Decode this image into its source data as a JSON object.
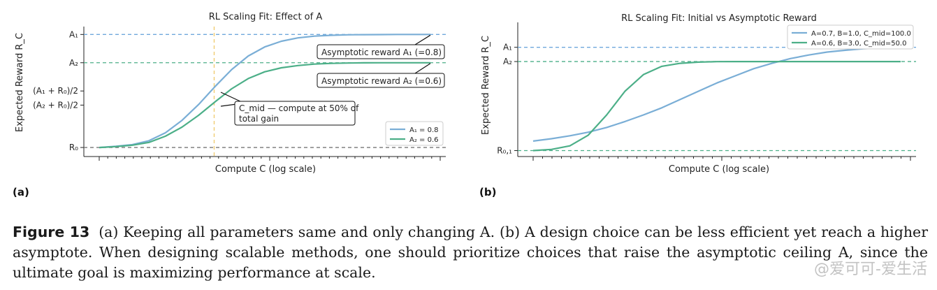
{
  "figure": {
    "panel_a_label": "(a)",
    "panel_b_label": "(b)",
    "caption_label": "Figure 13",
    "caption_text": "(a) Keeping all parameters same and only changing A. (b) A design choice can be less efficient yet reach a higher asymptote. When designing scalable methods, one should prioritize choices that raise the asymptotic ceiling A, since the ultimate goal is maximizing performance at scale.",
    "watermark": "@爱可可-爱生活"
  },
  "chart_data": [
    {
      "type": "line",
      "title": "RL Scaling Fit: Effect of A",
      "xlabel": "Compute C (log scale)",
      "ylabel": "Expected Reward R_C",
      "x_scale": "log",
      "xlim": [
        0,
        1
      ],
      "ylim": [
        -0.08,
        1.07
      ],
      "R0": 0,
      "y_ticks": [
        {
          "label": "A₁",
          "value": 1.0
        },
        {
          "label": "A₂",
          "value": 0.75
        },
        {
          "label": "(A₁ + R₀)/2",
          "value": 0.5
        },
        {
          "label": "(A₂ + R₀)/2",
          "value": 0.375
        },
        {
          "label": "R₀",
          "value": 0
        }
      ],
      "hlines": [
        {
          "value": 1.0,
          "color": "#6fa8dc"
        },
        {
          "value": 0.75,
          "color": "#4caf88"
        },
        {
          "value": 0,
          "color": "#777777"
        }
      ],
      "vline": {
        "x": 0.36,
        "color": "#f0c96a"
      },
      "series": [
        {
          "name": "A₁ = 0.8",
          "color": "#7aaed6",
          "asymptote": 1.0,
          "x": [
            0.0,
            0.05,
            0.1,
            0.15,
            0.2,
            0.25,
            0.3,
            0.35,
            0.4,
            0.45,
            0.5,
            0.55,
            0.6,
            0.65,
            0.7,
            0.75,
            0.8,
            0.85,
            0.9,
            0.95,
            1.0
          ],
          "y": [
            0.0,
            0.01,
            0.025,
            0.06,
            0.13,
            0.24,
            0.38,
            0.54,
            0.69,
            0.81,
            0.89,
            0.94,
            0.97,
            0.985,
            0.993,
            0.997,
            0.998,
            0.999,
            1.0,
            1.0,
            1.0
          ]
        },
        {
          "name": "A₂ = 0.6",
          "color": "#4caf88",
          "asymptote": 0.75,
          "x": [
            0.0,
            0.05,
            0.1,
            0.15,
            0.2,
            0.25,
            0.3,
            0.35,
            0.4,
            0.45,
            0.5,
            0.55,
            0.6,
            0.65,
            0.7,
            0.75,
            0.8,
            0.85,
            0.9,
            0.95,
            1.0
          ],
          "y": [
            0.0,
            0.008,
            0.02,
            0.045,
            0.1,
            0.18,
            0.285,
            0.405,
            0.52,
            0.61,
            0.67,
            0.705,
            0.725,
            0.738,
            0.744,
            0.747,
            0.749,
            0.75,
            0.75,
            0.75,
            0.75
          ]
        }
      ],
      "legend": {
        "placement": "lower-right"
      },
      "annotations": [
        {
          "text": "Asymptotic reward A₁ (=0.8)",
          "x": 1.0,
          "y": 1.0
        },
        {
          "text": "Asymptotic reward A₂ (=0.6)",
          "x": 1.0,
          "y": 0.75
        },
        {
          "text_line1": "C_mid — compute at 50% of",
          "text_line2": "total gain",
          "x": 0.36,
          "y": 0.45
        }
      ]
    },
    {
      "type": "line",
      "title": "RL Scaling Fit: Initial vs Asymptotic Reward",
      "xlabel": "Compute C (log scale)",
      "ylabel": "Expected Reward R_C",
      "x_scale": "log",
      "xlim": [
        0,
        1
      ],
      "ylim": [
        -0.05,
        1.08
      ],
      "y_ticks": [
        {
          "label": "A₁",
          "value": 0.87
        },
        {
          "label": "A₂",
          "value": 0.75
        },
        {
          "label": "R₀,₁",
          "value": 0
        }
      ],
      "hlines": [
        {
          "value": 0.87,
          "color": "#6fa8dc"
        },
        {
          "value": 0.75,
          "color": "#4caf88"
        },
        {
          "value": 0,
          "color": "#4caf88"
        }
      ],
      "series": [
        {
          "name": "A=0.7, B=1.0, C_mid=100.0",
          "color": "#7aaed6",
          "x": [
            0.0,
            0.05,
            0.1,
            0.15,
            0.2,
            0.25,
            0.3,
            0.35,
            0.4,
            0.45,
            0.5,
            0.55,
            0.6,
            0.65,
            0.7,
            0.75,
            0.8,
            0.85,
            0.9,
            0.95,
            1.0
          ],
          "y": [
            0.08,
            0.1,
            0.125,
            0.155,
            0.195,
            0.245,
            0.3,
            0.36,
            0.43,
            0.5,
            0.57,
            0.63,
            0.69,
            0.735,
            0.775,
            0.805,
            0.83,
            0.845,
            0.858,
            0.865,
            0.87
          ]
        },
        {
          "name": "A=0.6, B=3.0, C_mid=50.0",
          "color": "#4caf88",
          "x": [
            0.0,
            0.05,
            0.1,
            0.15,
            0.2,
            0.25,
            0.3,
            0.35,
            0.4,
            0.45,
            0.5,
            0.55,
            0.6,
            0.65,
            0.7,
            0.75,
            0.8,
            0.85,
            0.9,
            0.95,
            1.0
          ],
          "y": [
            0.0,
            0.01,
            0.04,
            0.13,
            0.3,
            0.5,
            0.64,
            0.71,
            0.735,
            0.745,
            0.749,
            0.75,
            0.75,
            0.75,
            0.75,
            0.75,
            0.75,
            0.75,
            0.75,
            0.75,
            0.75
          ]
        }
      ],
      "legend": {
        "placement": "top-right"
      }
    }
  ]
}
